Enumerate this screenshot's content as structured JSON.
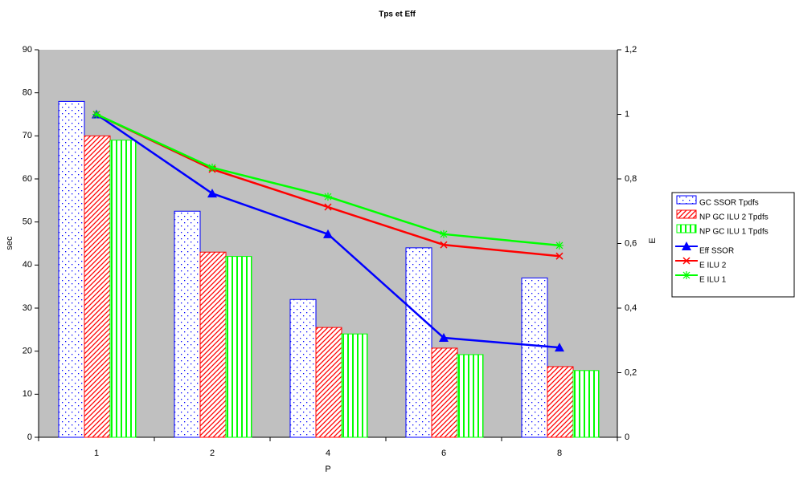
{
  "chart_data": {
    "type": "bar-line",
    "title": "Tps et Eff",
    "x_label": "P",
    "y_label": "sec",
    "y2_label": "E",
    "categories": [
      "1",
      "2",
      "4",
      "6",
      "8"
    ],
    "ylim": [
      0,
      90
    ],
    "yticks": [
      0,
      10,
      20,
      30,
      40,
      50,
      60,
      70,
      80,
      90
    ],
    "y2lim": [
      0,
      1.2
    ],
    "y2ticks": [
      0,
      {
        "value": 0.2,
        "label": "0,2"
      },
      {
        "value": 0.4,
        "label": "0,4"
      },
      {
        "value": 0.6,
        "label": "0,6"
      },
      {
        "value": 0.8,
        "label": "0,8"
      },
      1,
      {
        "value": 1.2,
        "label": "1,2"
      }
    ],
    "background": "#c0c0c0",
    "series": [
      {
        "name": "GC SSOR Tpdfs",
        "type": "bar",
        "color": "#0000ff",
        "values": [
          78,
          52.5,
          32,
          44,
          37
        ]
      },
      {
        "name": "NP GC ILU 2  Tpdfs",
        "type": "bar",
        "color": "#ff0000",
        "values": [
          70,
          43,
          25.5,
          20.7,
          16.4
        ]
      },
      {
        "name": "NP GC ILU 1  Tpdfs",
        "type": "bar",
        "color": "#00ff00",
        "values": [
          69,
          42,
          24,
          19.2,
          15.5
        ]
      },
      {
        "name": "Eff SSOR",
        "type": "line",
        "axis": "y2",
        "color": "#0000ff",
        "values": [
          1,
          0.755,
          0.629,
          0.308,
          0.278
        ]
      },
      {
        "name": "E ILU 2",
        "type": "line",
        "axis": "y2",
        "color": "#ff0000",
        "values": [
          1,
          0.83,
          0.713,
          0.596,
          0.561
        ]
      },
      {
        "name": "E ILU 1",
        "type": "line",
        "axis": "y2",
        "color": "#00ff00",
        "values": [
          1,
          0.835,
          0.745,
          0.629,
          0.594
        ]
      }
    ]
  }
}
